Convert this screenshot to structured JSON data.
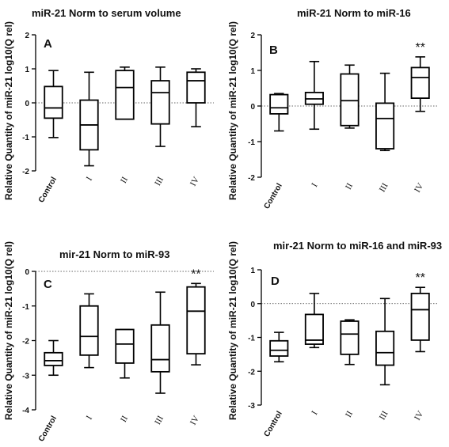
{
  "y_axis_label": "Relative Quantity of miR-21 log10(Q rel)",
  "chart_data": [
    {
      "type": "boxplot",
      "panel_label": "A",
      "title": "miR-21 Norm to serum volume",
      "ylabel": "Relative Quantity of miR-21 log10(Q rel)",
      "categories": [
        "Control",
        "I",
        "II",
        "III",
        "IV"
      ],
      "ylim": [
        -2,
        2
      ],
      "yticks": [
        "-2",
        "-1",
        "0",
        "1",
        "2"
      ],
      "reference_line": 0,
      "boxes": [
        {
          "min": -1.02,
          "q1": -0.45,
          "median": -0.15,
          "q3": 0.48,
          "max": 0.95,
          "significance": ""
        },
        {
          "min": -1.85,
          "q1": -1.38,
          "median": -0.65,
          "q3": 0.08,
          "max": 0.9,
          "significance": ""
        },
        {
          "min": -0.48,
          "q1": -0.48,
          "median": 0.45,
          "q3": 0.95,
          "max": 1.05,
          "significance": ""
        },
        {
          "min": -1.28,
          "q1": -0.62,
          "median": 0.3,
          "q3": 0.65,
          "max": 1.05,
          "significance": ""
        },
        {
          "min": -0.7,
          "q1": 0.0,
          "median": 0.65,
          "q3": 0.9,
          "max": 1.0,
          "significance": ""
        }
      ]
    },
    {
      "type": "boxplot",
      "panel_label": "B",
      "title": "miR-21 Norm to miR-16",
      "ylabel": "Relative Quantity of miR-21 log10(Q rel)",
      "categories": [
        "Control",
        "I",
        "II",
        "III",
        "IV"
      ],
      "ylim": [
        -2,
        2
      ],
      "yticks": [
        "-2",
        "-1",
        "0",
        "1",
        "2"
      ],
      "reference_line": 0,
      "boxes": [
        {
          "min": -0.7,
          "q1": -0.22,
          "median": -0.05,
          "q3": 0.32,
          "max": 0.35,
          "significance": ""
        },
        {
          "min": -0.65,
          "q1": 0.05,
          "median": 0.2,
          "q3": 0.38,
          "max": 1.25,
          "significance": ""
        },
        {
          "min": -0.62,
          "q1": -0.55,
          "median": 0.15,
          "q3": 0.9,
          "max": 1.15,
          "significance": ""
        },
        {
          "min": -1.25,
          "q1": -1.2,
          "median": -0.35,
          "q3": 0.08,
          "max": 0.92,
          "significance": ""
        },
        {
          "min": -0.15,
          "q1": 0.22,
          "median": 0.8,
          "q3": 1.08,
          "max": 1.38,
          "significance": "**"
        }
      ]
    },
    {
      "type": "boxplot",
      "panel_label": "C",
      "title": "mir-21 Norm to miR-93",
      "ylabel": "Relative Quantity of miR-21 log10(Q rel)",
      "categories": [
        "Control",
        "I",
        "II",
        "III",
        "IV"
      ],
      "ylim": [
        -4,
        0
      ],
      "yticks": [
        "-4",
        "-3",
        "-2",
        "-1",
        "0"
      ],
      "reference_line": 0,
      "boxes": [
        {
          "min": -3.0,
          "q1": -2.72,
          "median": -2.58,
          "q3": -2.35,
          "max": -2.0,
          "significance": ""
        },
        {
          "min": -2.78,
          "q1": -2.42,
          "median": -1.88,
          "q3": -1.0,
          "max": -0.65,
          "significance": ""
        },
        {
          "min": -3.08,
          "q1": -2.65,
          "median": -2.1,
          "q3": -1.68,
          "max": -1.68,
          "significance": ""
        },
        {
          "min": -3.52,
          "q1": -2.9,
          "median": -2.55,
          "q3": -1.55,
          "max": -0.6,
          "significance": ""
        },
        {
          "min": -2.7,
          "q1": -2.38,
          "median": -1.15,
          "q3": -0.45,
          "max": -0.35,
          "significance": "**"
        }
      ]
    },
    {
      "type": "boxplot",
      "panel_label": "D",
      "title": "mir-21 Norm to miR-16 and miR-93",
      "ylabel": "Relative Quantity of miR-21 log10(Q rel)",
      "categories": [
        "Control",
        "I",
        "II",
        "III",
        "IV"
      ],
      "ylim": [
        -3,
        1
      ],
      "yticks": [
        "-3",
        "-2",
        "-1",
        "0",
        "1"
      ],
      "reference_line": 0,
      "boxes": [
        {
          "min": -1.72,
          "q1": -1.55,
          "median": -1.38,
          "q3": -1.1,
          "max": -0.85,
          "significance": ""
        },
        {
          "min": -1.3,
          "q1": -1.2,
          "median": -1.08,
          "q3": -0.32,
          "max": 0.3,
          "significance": ""
        },
        {
          "min": -1.8,
          "q1": -1.5,
          "median": -0.9,
          "q3": -0.52,
          "max": -0.48,
          "significance": ""
        },
        {
          "min": -2.4,
          "q1": -1.82,
          "median": -1.45,
          "q3": -0.82,
          "max": 0.15,
          "significance": ""
        },
        {
          "min": -1.42,
          "q1": -1.08,
          "median": -0.18,
          "q3": 0.3,
          "max": 0.48,
          "significance": "**"
        }
      ]
    }
  ]
}
